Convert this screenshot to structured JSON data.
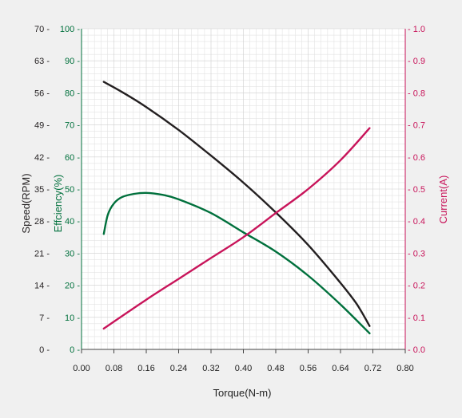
{
  "chart_data": {
    "type": "line",
    "xlabel": "Torque(N-m)",
    "x_ticks": [
      "0.00",
      "0.08",
      "0.16",
      "0.24",
      "0.32",
      "0.40",
      "0.48",
      "0.56",
      "0.64",
      "0.72",
      "0.80"
    ],
    "xlim": [
      0,
      0.8
    ],
    "grid": true,
    "axes": {
      "speed": {
        "label": "Speed(RPM)",
        "ticks": [
          "0",
          "7",
          "14",
          "21",
          "28",
          "35",
          "42",
          "49",
          "56",
          "63",
          "70"
        ],
        "ylim": [
          0,
          70
        ],
        "color": "#231f20"
      },
      "efficiency": {
        "label": "Effciency(%)",
        "ticks": [
          "0",
          "10",
          "20",
          "30",
          "40",
          "50",
          "60",
          "70",
          "80",
          "90",
          "100"
        ],
        "ylim": [
          0,
          100
        ],
        "color": "#00703c"
      },
      "current": {
        "label": "Current(A)",
        "ticks": [
          "0.0",
          "0.1",
          "0.2",
          "0.3",
          "0.4",
          "0.5",
          "0.6",
          "0.7",
          "0.8",
          "0.9",
          "1.0"
        ],
        "ylim": [
          0,
          1
        ],
        "color": "#c8145a"
      }
    },
    "series": [
      {
        "axis": "speed",
        "color": "#231f20",
        "points": [
          [
            0.055,
            58.4
          ],
          [
            0.1,
            56.2
          ],
          [
            0.16,
            52.9
          ],
          [
            0.24,
            47.9
          ],
          [
            0.32,
            42.3
          ],
          [
            0.4,
            36.4
          ],
          [
            0.48,
            29.9
          ],
          [
            0.56,
            22.8
          ],
          [
            0.64,
            14.5
          ],
          [
            0.68,
            9.9
          ],
          [
            0.712,
            5.1
          ]
        ]
      },
      {
        "axis": "efficiency",
        "color": "#00703c",
        "points": [
          [
            0.055,
            36
          ],
          [
            0.065,
            42
          ],
          [
            0.08,
            45.5
          ],
          [
            0.1,
            47.5
          ],
          [
            0.13,
            48.5
          ],
          [
            0.16,
            48.8
          ],
          [
            0.2,
            48.2
          ],
          [
            0.24,
            46.8
          ],
          [
            0.32,
            42.5
          ],
          [
            0.4,
            36.5
          ],
          [
            0.48,
            30.5
          ],
          [
            0.56,
            23
          ],
          [
            0.64,
            14
          ],
          [
            0.712,
            5
          ]
        ]
      },
      {
        "axis": "current",
        "color": "#c8145a",
        "points": [
          [
            0.055,
            0.065
          ],
          [
            0.16,
            0.155
          ],
          [
            0.24,
            0.22
          ],
          [
            0.32,
            0.285
          ],
          [
            0.4,
            0.35
          ],
          [
            0.48,
            0.425
          ],
          [
            0.56,
            0.5
          ],
          [
            0.64,
            0.59
          ],
          [
            0.712,
            0.69
          ]
        ]
      }
    ]
  }
}
